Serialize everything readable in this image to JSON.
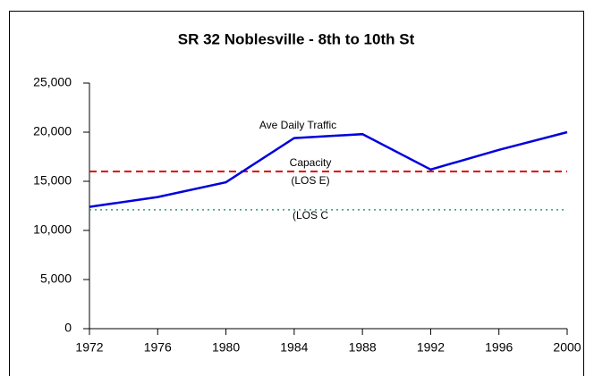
{
  "chart_data": {
    "type": "line",
    "title": "SR 32 Noblesville - 8th to 10th St",
    "x": [
      1972,
      1976,
      1980,
      1984,
      1988,
      1992,
      1996,
      2000
    ],
    "series": [
      {
        "name": "Ave Daily Traffic",
        "color": "#0000dd",
        "values": [
          12400,
          13400,
          14900,
          19400,
          19800,
          16200,
          18200,
          20000
        ]
      }
    ],
    "reference_lines": [
      {
        "labels": [
          "Capacity",
          "(LOS E)"
        ],
        "value": 16000,
        "color": "#dd0000",
        "style": "dashed"
      },
      {
        "labels": [
          "(LOS C"
        ],
        "value": 12100,
        "color": "#2a9a8a",
        "style": "dotted"
      }
    ],
    "xlim": [
      1972,
      2000
    ],
    "xticks": [
      1972,
      1976,
      1980,
      1984,
      1988,
      1992,
      1996,
      2000
    ],
    "ylim": [
      0,
      25000
    ],
    "yticks": [
      0,
      {
        "value": 5000,
        "label": "5,000"
      },
      {
        "value": 10000,
        "label": "10,000"
      },
      {
        "value": 15000,
        "label": "15,000"
      },
      {
        "value": 20000,
        "label": "20,000"
      },
      {
        "value": 25000,
        "label": "25,000"
      }
    ],
    "grid": false
  }
}
